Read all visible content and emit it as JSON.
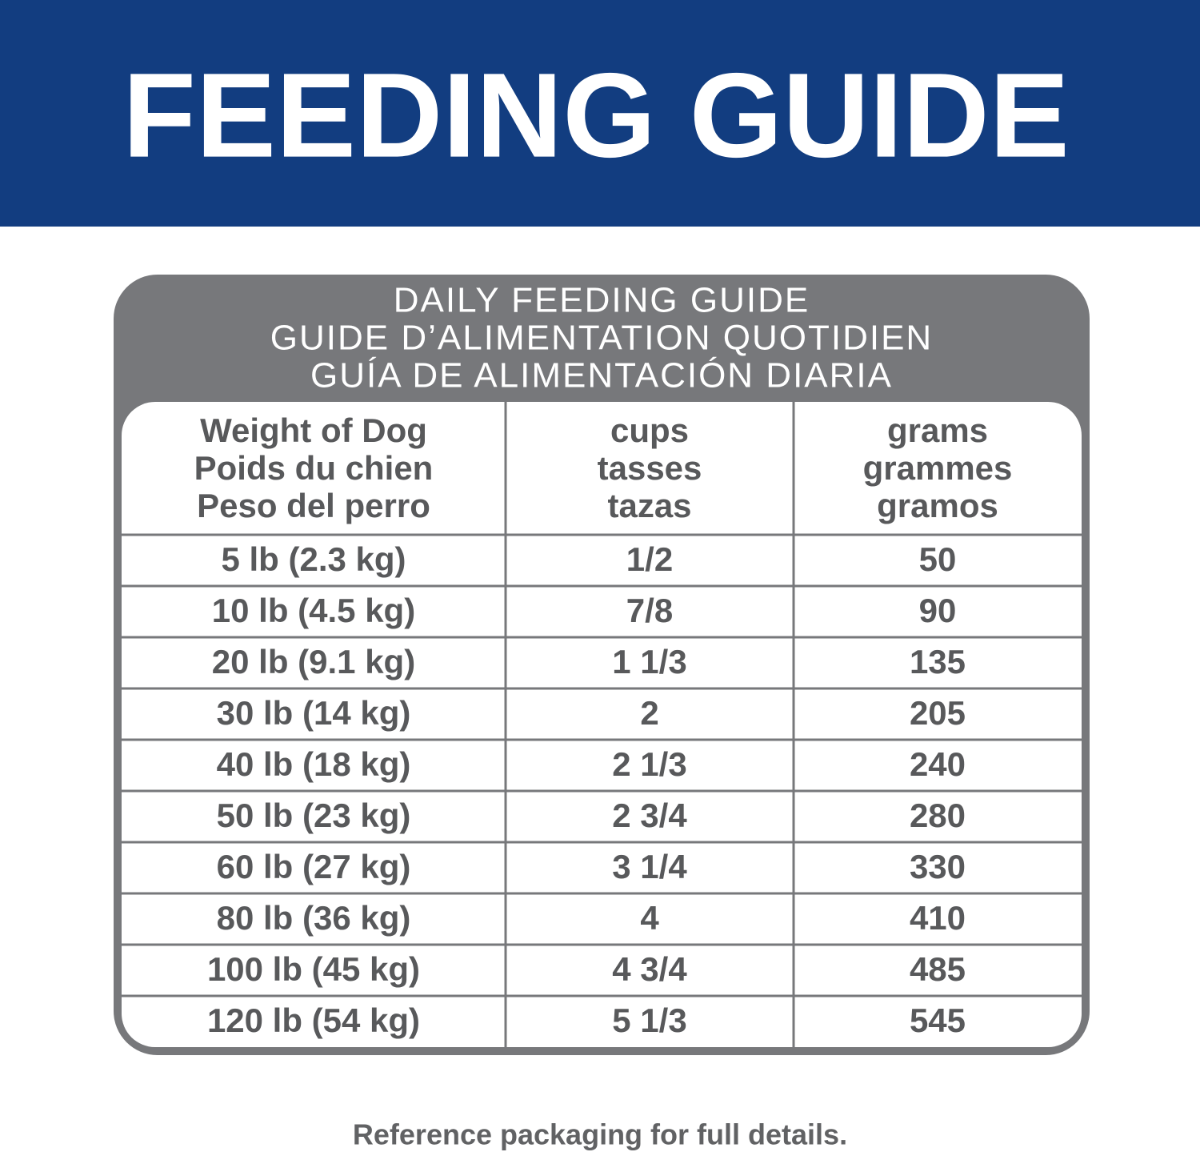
{
  "header": {
    "title": "FEEDING GUIDE"
  },
  "table": {
    "title": [
      "DAILY FEEDING GUIDE",
      "GUIDE D’ALIMENTATION QUOTIDIEN",
      "GUÍA DE ALIMENTACIÓN DIARIA"
    ],
    "columns": [
      [
        "Weight of Dog",
        "Poids du chien",
        "Peso del perro"
      ],
      [
        "cups",
        "tasses",
        "tazas"
      ],
      [
        "grams",
        "grammes",
        "gramos"
      ]
    ],
    "rows": [
      [
        "5 lb (2.3 kg)",
        "1/2",
        "50"
      ],
      [
        "10 lb (4.5 kg)",
        "7/8",
        "90"
      ],
      [
        "20 lb (9.1 kg)",
        "1 1/3",
        "135"
      ],
      [
        "30 lb (14 kg)",
        "2",
        "205"
      ],
      [
        "40 lb (18 kg)",
        "2 1/3",
        "240"
      ],
      [
        "50 lb (23 kg)",
        "2 3/4",
        "280"
      ],
      [
        "60 lb (27 kg)",
        "3 1/4",
        "330"
      ],
      [
        "80 lb (36 kg)",
        "4",
        "410"
      ],
      [
        "100 lb (45 kg)",
        "4 3/4",
        "485"
      ],
      [
        "120 lb (54 kg)",
        "5 1/3",
        "545"
      ]
    ]
  },
  "footer": {
    "note": "Reference packaging for full details."
  }
}
